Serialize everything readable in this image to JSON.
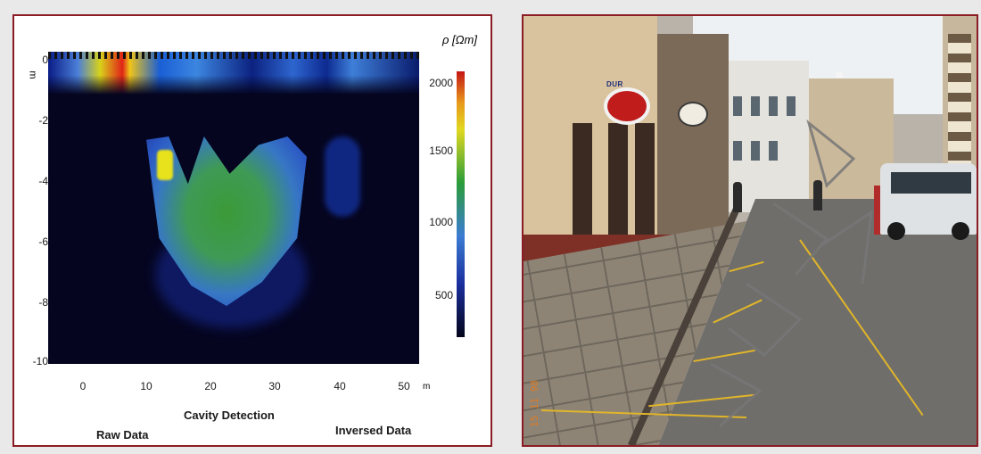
{
  "left_panel": {
    "y_ticks": [
      "0",
      "-2",
      "-4",
      "-6",
      "-8",
      "-10"
    ],
    "y_unit": "m",
    "x_ticks": [
      "0",
      "10",
      "20",
      "30",
      "40",
      "50"
    ],
    "x_unit": "m",
    "colorbar": {
      "title": "ρ [Ωm]",
      "ticks": [
        "2000",
        "1500",
        "1000",
        "500"
      ],
      "colors": [
        "#c41515",
        "#e0d820",
        "#2a9c3a",
        "#3c7cd3",
        "#1a2f9e",
        "#04051a"
      ]
    },
    "captions": {
      "center": "Cavity Detection",
      "left": "Raw Data",
      "right": "Inversed Data"
    }
  },
  "right_panel": {
    "shop_sign": "DUR",
    "date_stamp": "15 11 98"
  },
  "colors": {
    "frame": "#8b1c24",
    "background": "#e9e9e9"
  }
}
